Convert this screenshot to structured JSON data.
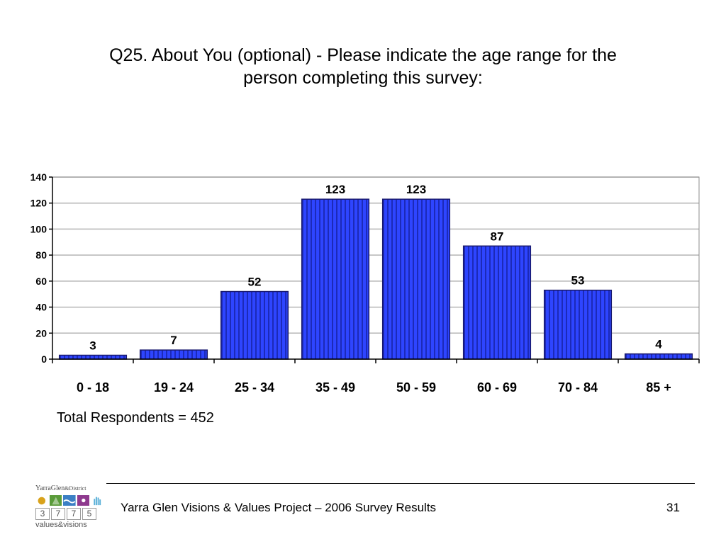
{
  "slide": {
    "title_line1": "Q25. About You (optional) - Please indicate the age range for the",
    "title_line2": "person completing this survey:"
  },
  "chart_data": {
    "type": "bar",
    "categories": [
      "0 - 18",
      "19 - 24",
      "25 - 34",
      "35 - 49",
      "50 - 59",
      "60 - 69",
      "70 - 84",
      "85 +"
    ],
    "values": [
      3,
      7,
      52,
      123,
      123,
      87,
      53,
      4
    ],
    "ylim": [
      0,
      140
    ],
    "yticks": [
      0,
      20,
      40,
      60,
      80,
      100,
      120,
      140
    ],
    "title": "",
    "xlabel": "",
    "ylabel": "",
    "grid": true,
    "legend": "none",
    "bar_color": "#2a3bf0",
    "bar_edge_color": "#1a1a6e",
    "data_labels": true
  },
  "note": "Total Respondents = 452",
  "footer": {
    "text": "Yarra Glen Visions & Values Project – 2006 Survey Results",
    "page_number": "31"
  },
  "logo": {
    "top_text": "YarraGlen",
    "top_small": "&District",
    "digits": [
      "3",
      "7",
      "7",
      "5"
    ],
    "bottom_text": "values&visions",
    "icon_colors": [
      "#d9a21b",
      "#5a9b3a",
      "#3b7fc4",
      "#8e3a8e",
      "#5ab0d8"
    ]
  }
}
